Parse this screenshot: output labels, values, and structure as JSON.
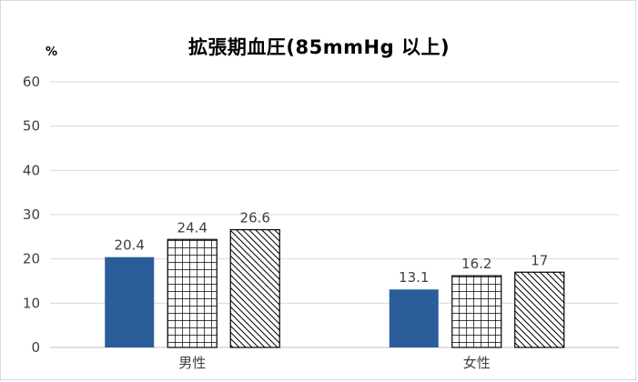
{
  "chart_data": {
    "type": "bar",
    "title": "拡張期血圧(85mmHg 以上)",
    "y_unit": "%",
    "xlabel": "",
    "ylabel": "",
    "categories": [
      "男性",
      "女性"
    ],
    "series": [
      {
        "values": [
          20.4,
          13.1
        ],
        "style": "solid",
        "color": "#2b5d9b"
      },
      {
        "values": [
          24.4,
          16.2
        ],
        "style": "grid",
        "color": "#000000"
      },
      {
        "values": [
          26.6,
          17
        ],
        "style": "diagonal",
        "color": "#000000"
      }
    ],
    "data_labels": [
      [
        "20.4",
        "13.1"
      ],
      [
        "24.4",
        "16.2"
      ],
      [
        "26.6",
        "17"
      ]
    ],
    "ylim": [
      0,
      60
    ],
    "yticks": [
      0,
      10,
      20,
      30,
      40,
      50,
      60
    ],
    "grid": true,
    "legend": "none"
  }
}
